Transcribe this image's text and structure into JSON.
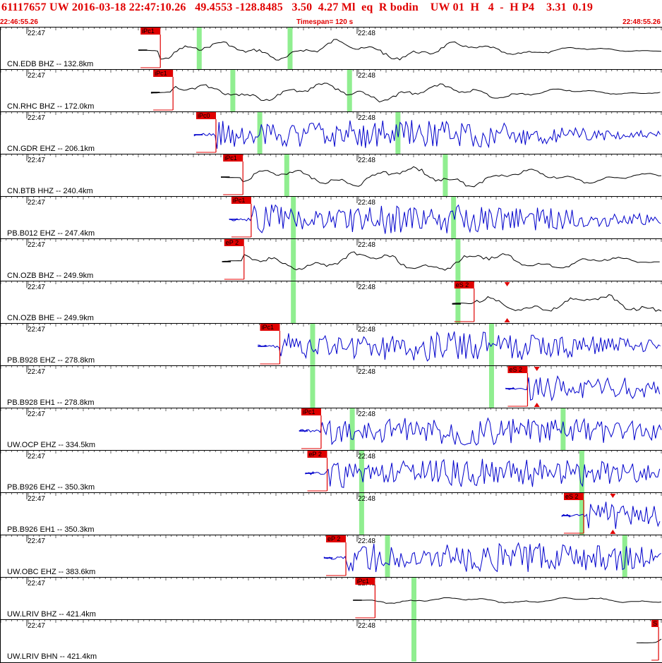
{
  "header": {
    "title_line": "61117657 UW 2016-03-18 22:47:10.26   49.4553 -128.8485   3.50  4.27 Ml  eq  R bodin    UW 01  H   4  -  H P4    3.31  0.19",
    "start_time": "22:46:55.26",
    "timespan": "Timespan= 120 s",
    "end_time": "22:48:55.26"
  },
  "colors": {
    "pick_red": "#e00000",
    "trace_blue": "#0000cc",
    "trace_black": "#000000",
    "highlight_green": "#90ee90",
    "grid": "#000000"
  },
  "chart_data": {
    "type": "line",
    "xlim_seconds": [
      0,
      120
    ],
    "minute_labels": [
      {
        "t": 4.74,
        "label": "22:47"
      },
      {
        "t": 64.74,
        "label": "22:48"
      }
    ],
    "traces": [
      {
        "label": "CN.EDB BHZ -- 132.8km",
        "color": "black",
        "pick": {
          "label": "iPc1",
          "t": 29.0
        },
        "green": [
          36.0,
          52.5
        ],
        "amp": 1.0
      },
      {
        "label": "CN.RHC BHZ -- 172.0km",
        "color": "black",
        "pick": {
          "label": "iPc1",
          "t": 31.3
        },
        "green": [
          42.1,
          63.3
        ],
        "amp": 0.9
      },
      {
        "label": "CN.GDR EHZ -- 206.1km",
        "color": "blue",
        "pick": {
          "label": "iPc0",
          "t": 39.1
        },
        "green": [
          47.0,
          72.1
        ],
        "amp": 1.2
      },
      {
        "label": "CN.BTB HHZ -- 240.4km",
        "color": "black",
        "pick": {
          "label": "iPc1",
          "t": 44.0
        },
        "green": [
          51.9,
          80.7
        ],
        "amp": 1.0
      },
      {
        "label": "PB.B012 EHZ -- 247.4km",
        "color": "blue",
        "pick": {
          "label": "iPc1",
          "t": 45.5
        },
        "green": [
          53.1,
          82.2
        ],
        "amp": 1.2
      },
      {
        "label": "CN.OZB BHZ -- 249.9km",
        "color": "black",
        "pick": {
          "label": "eP 2",
          "t": 44.2
        },
        "green": [
          53.1,
          83.0
        ],
        "amp": 1.0
      },
      {
        "label": "CN.OZB BHE -- 249.9km",
        "color": "black",
        "pick": {
          "label": "eS 2",
          "t": 86.0
        },
        "green": [
          53.1,
          83.0
        ],
        "amp": 1.0,
        "marker_t": 92.0
      },
      {
        "label": "PB.B928 EHZ -- 278.8km",
        "color": "blue",
        "pick": {
          "label": "iPc1",
          "t": 50.7
        },
        "green": [
          56.6,
          89.1
        ],
        "amp": 1.2
      },
      {
        "label": "PB.B928 EH1 -- 278.8km",
        "color": "blue",
        "pick": {
          "label": "eS 2",
          "t": 95.7
        },
        "green": [
          56.6,
          89.1
        ],
        "amp": 1.0,
        "marker_t": 97.4
      },
      {
        "label": "UW.OCP EHZ -- 334.5km",
        "color": "blue",
        "pick": {
          "label": "iPc1",
          "t": 58.2
        },
        "green": [
          63.8,
          102.1
        ],
        "amp": 1.2
      },
      {
        "label": "PB.B926 EHZ -- 350.3km",
        "color": "blue",
        "pick": {
          "label": "eP 2",
          "t": 59.3
        },
        "green": [
          65.5,
          105.5
        ],
        "amp": 1.2
      },
      {
        "label": "PB.B926 EH1 -- 350.3km",
        "color": "blue",
        "pick": {
          "label": "eS 2",
          "t": 105.9
        },
        "green": [
          65.5,
          105.5
        ],
        "amp": 1.1,
        "marker_t": 111.2
      },
      {
        "label": "UW.OBC EHZ -- 383.6km",
        "color": "blue",
        "pick": {
          "label": "eP 2",
          "t": 62.7
        },
        "green": [
          70.2,
          113.3
        ],
        "amp": 1.2
      },
      {
        "label": "UW.LRIV BHZ -- 421.4km",
        "color": "black",
        "pick": {
          "label": "iPc1",
          "t": 68.0
        },
        "green": [
          75.0
        ],
        "amp": 0.3
      },
      {
        "label": "UW.LRIV BHN -- 421.4km",
        "color": "black",
        "pick": {
          "label": "S",
          "t": 119.5
        },
        "green": [
          75.0
        ],
        "amp": 0.6
      }
    ]
  }
}
